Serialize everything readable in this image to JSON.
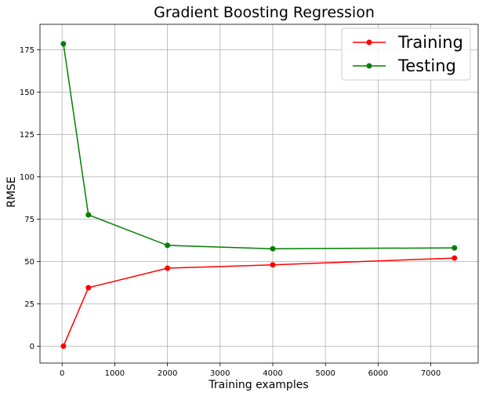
{
  "chart_data": {
    "type": "line",
    "title": "Gradient Boosting Regression",
    "xlabel": "Training examples",
    "ylabel": "RMSE",
    "xlim": [
      -420,
      7900
    ],
    "ylim": [
      -10,
      190
    ],
    "xticks": [
      0,
      1000,
      2000,
      3000,
      4000,
      5000,
      6000,
      7000
    ],
    "yticks": [
      0,
      25,
      50,
      75,
      100,
      125,
      150,
      175
    ],
    "grid": true,
    "legend_position": "top-right",
    "series": [
      {
        "name": "Training",
        "color": "#ff0000",
        "x": [
          25,
          500,
          2000,
          4000,
          7450
        ],
        "y": [
          0,
          34.5,
          46,
          48,
          52
        ]
      },
      {
        "name": "Testing",
        "color": "#008000",
        "x": [
          25,
          500,
          2000,
          4000,
          7450
        ],
        "y": [
          178.5,
          77.5,
          59.5,
          57.5,
          58
        ]
      }
    ]
  }
}
